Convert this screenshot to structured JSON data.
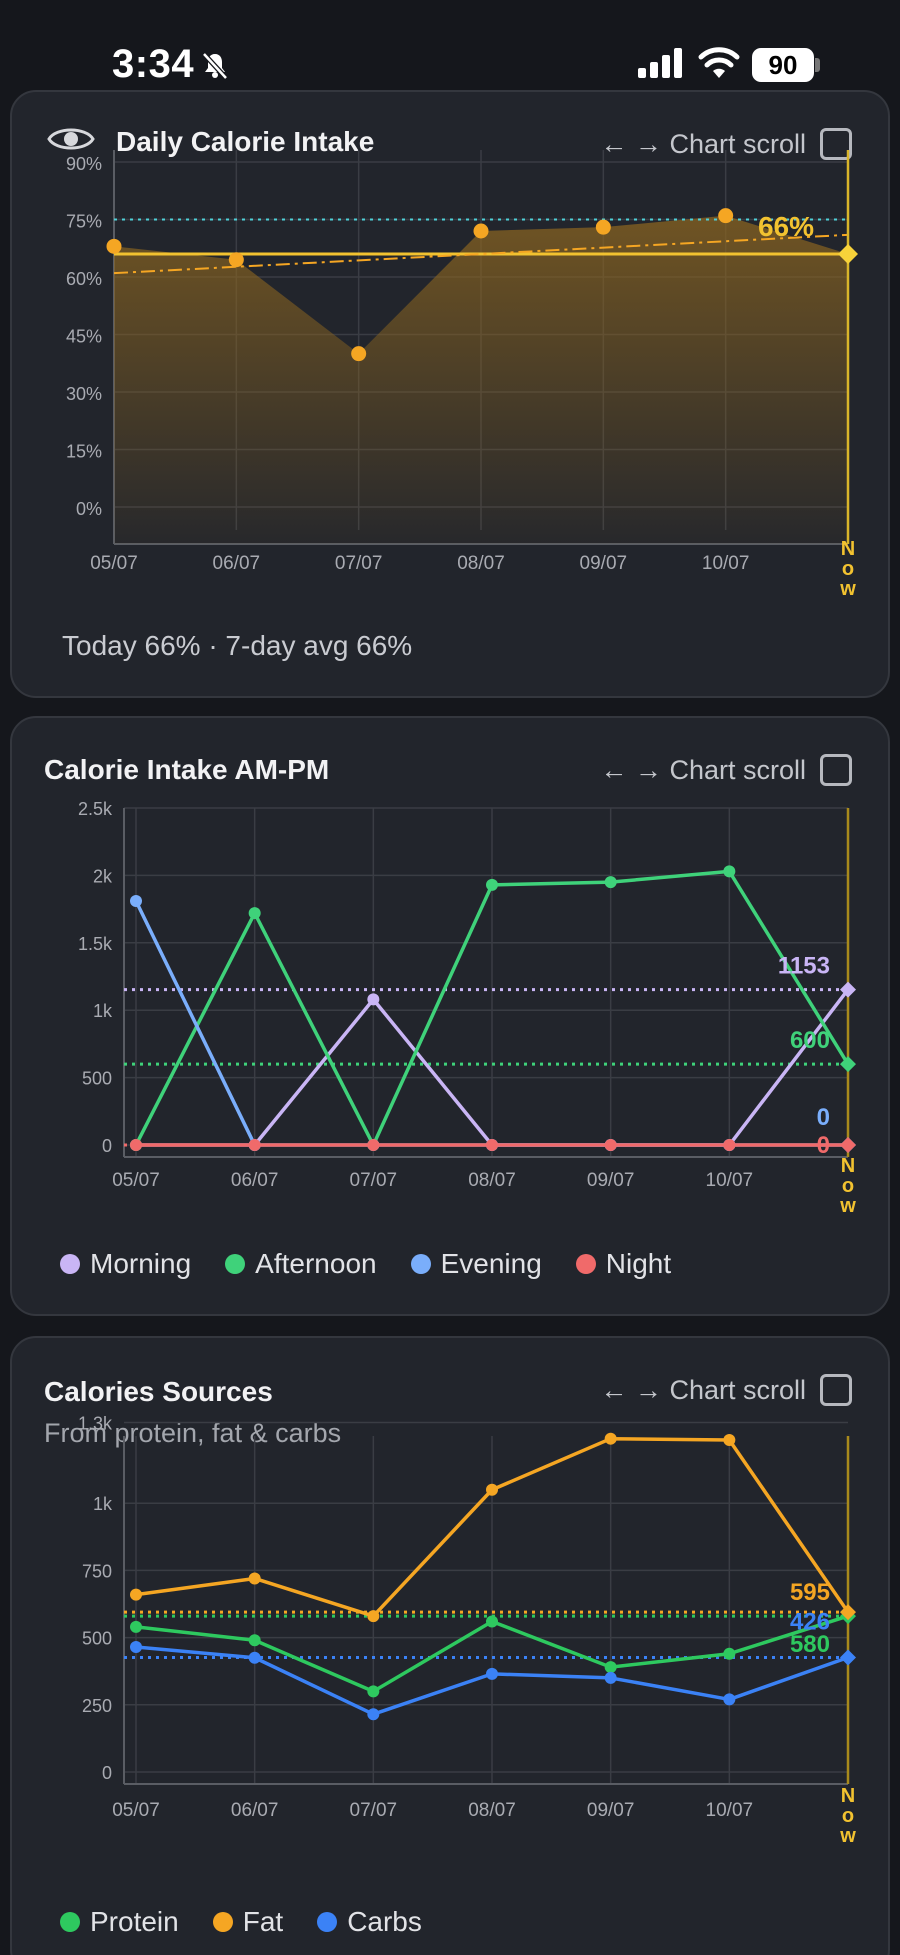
{
  "status_bar": {
    "time": "3:34",
    "battery": "90"
  },
  "scroll_label": "← → Chart scroll",
  "cards": [
    {
      "title": "Daily Calorie Intake",
      "summary": "Today 66% · 7-day avg 66%",
      "current_label": "66%"
    },
    {
      "title": "Calorie Intake AM-PM",
      "legend": [
        {
          "name": "Morning",
          "color": "#c9b5f5"
        },
        {
          "name": "Afternoon",
          "color": "#3fd27a"
        },
        {
          "name": "Evening",
          "color": "#7aaefb"
        },
        {
          "name": "Night",
          "color": "#f06a6a"
        }
      ]
    },
    {
      "title": "Calories Sources",
      "subtitle": "From protein, fat & carbs",
      "legend": [
        {
          "name": "Protein",
          "color": "#2ec95f"
        },
        {
          "name": "Fat",
          "color": "#f5a623"
        },
        {
          "name": "Carbs",
          "color": "#3b82f6"
        }
      ]
    }
  ],
  "chart_data": [
    {
      "type": "area",
      "title": "Daily Calorie Intake",
      "categories": [
        "05/07",
        "06/07",
        "07/07",
        "08/07",
        "09/07",
        "10/07",
        "Now"
      ],
      "yticks": [
        "0%",
        "15%",
        "30%",
        "45%",
        "60%",
        "75%",
        "90%"
      ],
      "ylim": [
        -6,
        90
      ],
      "series": [
        {
          "values": [
            68,
            64.5,
            40,
            72,
            73,
            76,
            66
          ],
          "color": "#f5a623"
        }
      ],
      "target_line": 75,
      "average_line": 66,
      "trend_start": 61,
      "trend_end": 71,
      "current_label": "66%"
    },
    {
      "type": "line",
      "title": "Calorie Intake AM-PM",
      "categories": [
        "05/07",
        "06/07",
        "07/07",
        "08/07",
        "09/07",
        "10/07",
        "Now"
      ],
      "yticks": [
        "0",
        "500",
        "1k",
        "1.5k",
        "2k",
        "2.5k"
      ],
      "ylim": [
        0,
        2500
      ],
      "series": [
        {
          "name": "Morning",
          "color": "#c9b5f5",
          "values": [
            0,
            0,
            1080,
            0,
            0,
            0,
            1153
          ],
          "avg": 1153,
          "end_label": "1153"
        },
        {
          "name": "Afternoon",
          "color": "#3fd27a",
          "values": [
            0,
            1720,
            0,
            1930,
            1950,
            2030,
            600
          ],
          "avg": 600,
          "end_label": "600"
        },
        {
          "name": "Evening",
          "color": "#7aaefb",
          "values": [
            1810,
            0,
            0,
            0,
            0,
            0,
            0
          ],
          "avg": null,
          "end_label": "0"
        },
        {
          "name": "Night",
          "color": "#f06a6a",
          "values": [
            0,
            0,
            0,
            0,
            0,
            0,
            0
          ],
          "avg": 0,
          "end_label": "0"
        }
      ]
    },
    {
      "type": "line",
      "title": "Calories Sources",
      "categories": [
        "05/07",
        "06/07",
        "07/07",
        "08/07",
        "09/07",
        "10/07",
        "Now"
      ],
      "yticks": [
        "0",
        "250",
        "500",
        "750",
        "1k",
        "1.3k"
      ],
      "ylim": [
        0,
        1250
      ],
      "series": [
        {
          "name": "Protein",
          "color": "#2ec95f",
          "values": [
            540,
            490,
            300,
            560,
            390,
            440,
            580
          ],
          "avg": 580,
          "end_label": "580"
        },
        {
          "name": "Fat",
          "color": "#f5a623",
          "values": [
            660,
            720,
            580,
            1050,
            1240,
            1235,
            595
          ],
          "avg": 595,
          "end_label": "595"
        },
        {
          "name": "Carbs",
          "color": "#3b82f6",
          "values": [
            465,
            425,
            215,
            365,
            350,
            270,
            426
          ],
          "avg": 426,
          "end_label": "426"
        }
      ]
    }
  ]
}
